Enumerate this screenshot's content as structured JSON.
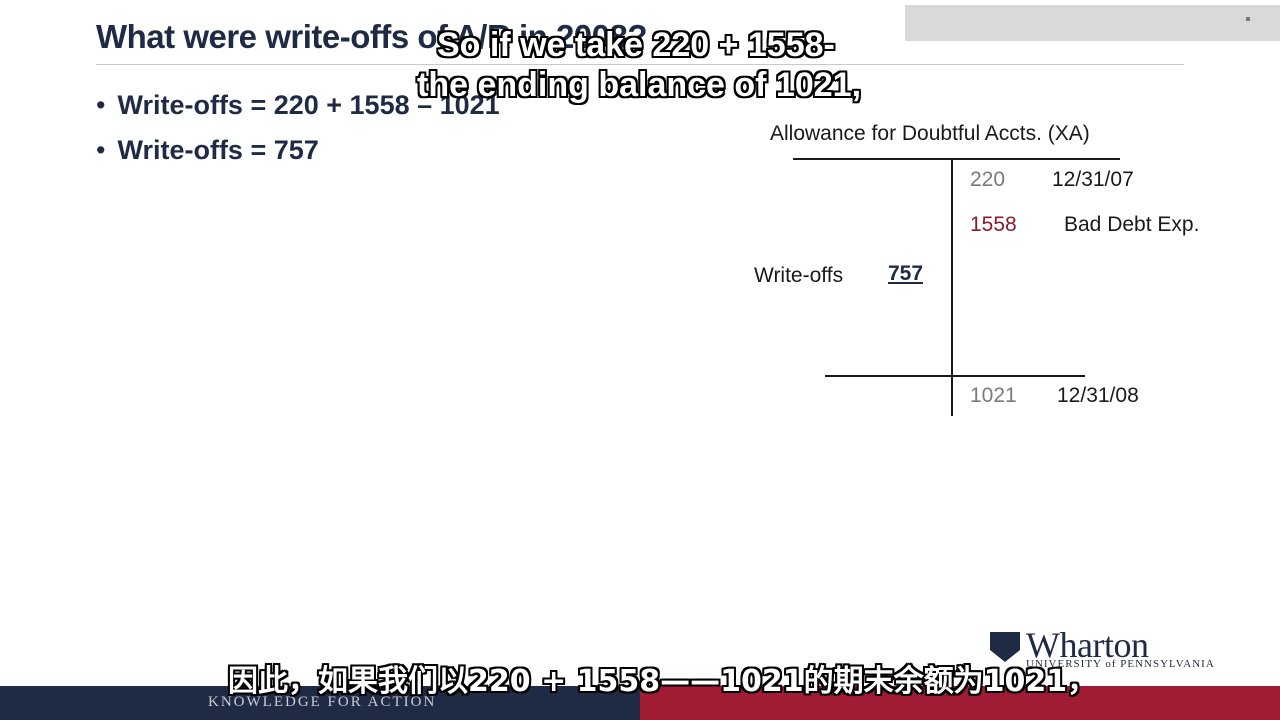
{
  "slide": {
    "title": "What were write-offs of A/R in 2008?",
    "bullets": [
      "Write-offs = 220 + 1558 – 1021",
      "Write-offs = 757"
    ]
  },
  "t_account": {
    "title": "Allowance for Doubtful Accts. (XA)",
    "credit_entries": [
      {
        "amount": "220",
        "label": "12/31/07"
      },
      {
        "amount": "1558",
        "label": "Bad Debt Exp."
      }
    ],
    "debit_entry": {
      "label": "Write-offs",
      "amount": "757"
    },
    "ending_balance": {
      "amount": "1021",
      "label": "12/31/08"
    }
  },
  "logo": {
    "wordmark": "Wharton",
    "subtitle": "UNIVERSITY of PENNSYLVANIA"
  },
  "footer": {
    "tagline": "KNOWLEDGE FOR ACTION"
  },
  "subtitles": {
    "english_line1": "So if we take 220 + 1558-",
    "english_line2": "the ending balance of 1021,",
    "chinese": "因此，如果我们以220 + 1558——1021的期末余额为1021，"
  },
  "colors": {
    "navy": "#1f2a44",
    "crimson": "#a01c35",
    "highlight_red": "#8b1a2b"
  }
}
